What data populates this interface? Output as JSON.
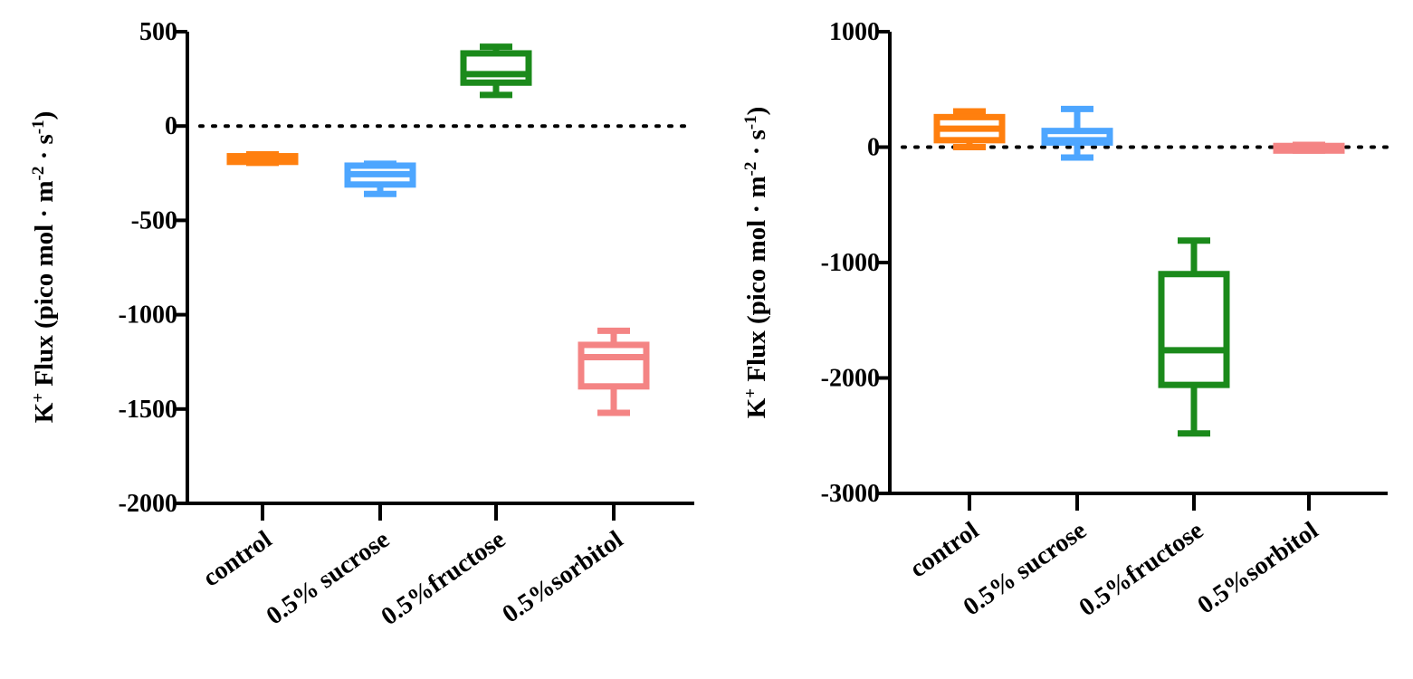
{
  "chart_data": [
    {
      "type": "box",
      "ylabel_prefix": "K",
      "ylabel_ion_sup": "+",
      "ylabel_main": " Flux (pico mol · m",
      "ylabel_m_sup": "-2",
      "ylabel_mid": " · s",
      "ylabel_s_sup": "-1",
      "ylabel_end": ")",
      "ylim": [
        -2000,
        500
      ],
      "yticks": [
        500,
        0,
        -500,
        -1000,
        -1500,
        -2000
      ],
      "ytick_labels": [
        "500",
        "0",
        "-500",
        "-1000",
        "-1500",
        "-2000"
      ],
      "reference_line": 0,
      "categories": [
        "control",
        "0.5% sucrose",
        "0.5%fructose",
        "0.5%sorbitol"
      ],
      "series": [
        {
          "color": "#ff7f0e",
          "min": -195,
          "q1": -190,
          "median": -175,
          "q3": -160,
          "max": -150
        },
        {
          "color": "#4da6ff",
          "min": -360,
          "q1": -310,
          "median": -255,
          "q3": -210,
          "max": -200
        },
        {
          "color": "#1b8a1b",
          "min": 165,
          "q1": 230,
          "median": 275,
          "q3": 385,
          "max": 420
        },
        {
          "color": "#f48484",
          "min": -1520,
          "q1": -1380,
          "median": -1225,
          "q3": -1160,
          "max": -1085
        }
      ]
    },
    {
      "type": "box",
      "ylabel_prefix": "K",
      "ylabel_ion_sup": "+",
      "ylabel_main": " Flux (pico mol · m",
      "ylabel_m_sup": "-2",
      "ylabel_mid": " · s",
      "ylabel_s_sup": "-1",
      "ylabel_end": ")",
      "ylim": [
        -3000,
        1000
      ],
      "yticks": [
        1000,
        0,
        -1000,
        -2000,
        -3000
      ],
      "ytick_labels": [
        "1000",
        "0",
        "-1000",
        "-2000",
        "-3000"
      ],
      "reference_line": 0,
      "categories": [
        "control",
        "0.5% sucrose",
        "0.5%fructose",
        "0.5%sorbitol"
      ],
      "series": [
        {
          "color": "#ff7f0e",
          "min": 0,
          "q1": 60,
          "median": 160,
          "q3": 260,
          "max": 310
        },
        {
          "color": "#4da6ff",
          "min": -90,
          "q1": 40,
          "median": 60,
          "q3": 140,
          "max": 330
        },
        {
          "color": "#1b8a1b",
          "min": -2480,
          "q1": -2060,
          "median": -1760,
          "q3": -1100,
          "max": -810
        },
        {
          "color": "#f48484",
          "min": -30,
          "q1": -30,
          "median": 0,
          "q3": 10,
          "max": 20
        }
      ]
    }
  ]
}
